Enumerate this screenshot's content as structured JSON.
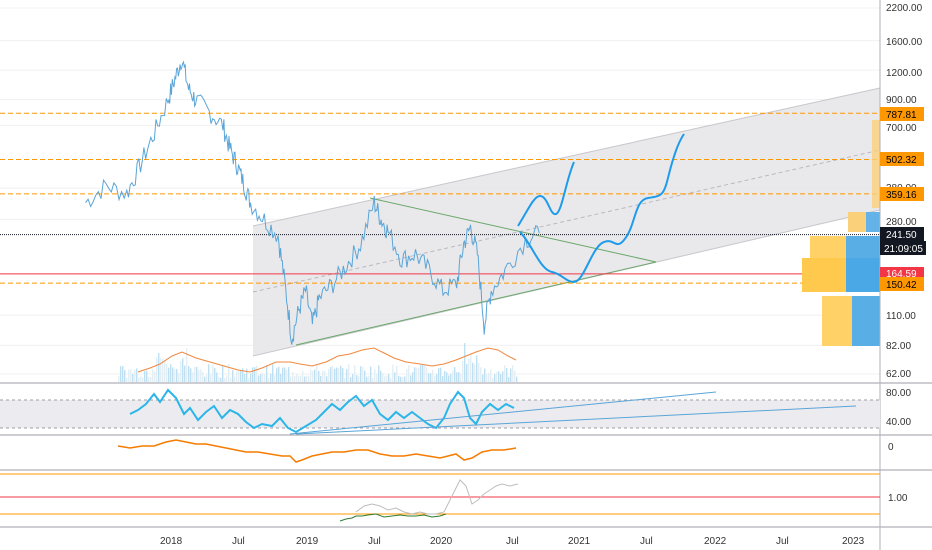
{
  "chart_data": [
    {
      "type": "line",
      "title": "",
      "scale": "log",
      "ylim": [
        55,
        2400
      ],
      "y_ticks": [
        "2200.00",
        "1600.00",
        "1200.00",
        "900.00",
        "700.00",
        "380.00",
        "280.00",
        "110.00",
        "82.00",
        "62.00"
      ],
      "x_ticks": [
        "2018",
        "Jul",
        "2019",
        "Jul",
        "2020",
        "Jul",
        "2021",
        "Jul",
        "2022",
        "Jul",
        "2023"
      ],
      "series": [
        {
          "values_approx": [
            [
              2017.4,
              330
            ],
            [
              2017.55,
              390
            ],
            [
              2017.7,
              360
            ],
            [
              2017.8,
              480
            ],
            [
              2017.9,
              650
            ],
            [
              2018.0,
              900
            ],
            [
              2018.05,
              1100
            ],
            [
              2018.1,
              1350
            ],
            [
              2018.15,
              1000
            ],
            [
              2018.2,
              900
            ],
            [
              2018.3,
              800
            ],
            [
              2018.4,
              700
            ],
            [
              2018.45,
              560
            ],
            [
              2018.5,
              480
            ],
            [
              2018.55,
              400
            ],
            [
              2018.6,
              330
            ],
            [
              2018.7,
              280
            ],
            [
              2018.8,
              240
            ],
            [
              2018.85,
              150
            ],
            [
              2018.9,
              88
            ],
            [
              2018.95,
              115
            ],
            [
              2019.0,
              140
            ],
            [
              2019.05,
              100
            ],
            [
              2019.1,
              130
            ],
            [
              2019.2,
              150
            ],
            [
              2019.3,
              180
            ],
            [
              2019.4,
              220
            ],
            [
              2019.5,
              330
            ],
            [
              2019.55,
              280
            ],
            [
              2019.6,
              250
            ],
            [
              2019.7,
              190
            ],
            [
              2019.8,
              200
            ],
            [
              2019.9,
              170
            ],
            [
              2020.0,
              140
            ],
            [
              2020.1,
              150
            ],
            [
              2020.15,
              220
            ],
            [
              2020.2,
              260
            ],
            [
              2020.25,
              200
            ],
            [
              2020.3,
              100
            ],
            [
              2020.35,
              140
            ],
            [
              2020.45,
              170
            ],
            [
              2020.6,
              230
            ],
            [
              2020.7,
              245
            ]
          ]
        }
      ],
      "horizontal_levels": [
        {
          "value": 787.81,
          "label": "787.81",
          "color": "#ff9800"
        },
        {
          "value": 502.32,
          "label": "502.32",
          "color": "#ff9800"
        },
        {
          "value": 359.16,
          "label": "359.16",
          "color": "#ff9800"
        },
        {
          "value": 241.5,
          "label": "241.50",
          "color": "#131722"
        },
        {
          "value": 164.59,
          "label": "164.59",
          "color": "#f23645"
        },
        {
          "value": 150.42,
          "label": "150.42",
          "color": "#ff9800"
        }
      ],
      "price_tags": [
        {
          "text": "787.81",
          "bg": "#ff9800"
        },
        {
          "text": "502.32",
          "bg": "#ff9800"
        },
        {
          "text": "359.16",
          "bg": "#ff9800"
        },
        {
          "text": "241.50",
          "bg": "#131722"
        },
        {
          "text": "21:09:05",
          "bg": "#131722"
        },
        {
          "text": "164.59",
          "bg": "#f23645"
        },
        {
          "text": "150.42",
          "bg": "#ff9800"
        }
      ]
    },
    {
      "type": "line",
      "title": "",
      "ylim": [
        20,
        90
      ],
      "y_ticks": [
        "80.00",
        "40.00"
      ],
      "bands": [
        30,
        70
      ]
    },
    {
      "type": "line",
      "title": "",
      "y_ticks": [
        "0"
      ]
    },
    {
      "type": "line",
      "title": "",
      "y_ticks": [
        "1.00"
      ]
    }
  ],
  "colors": {
    "price": "#5aa5d8",
    "channel": "#d9d9dc",
    "triangle": "#6aa86a",
    "forecast": "#1e9bea",
    "volume_ma": "#f0883e",
    "rsi": "#2bb5e8",
    "orange": "#ff9800",
    "red": "#f23645"
  }
}
